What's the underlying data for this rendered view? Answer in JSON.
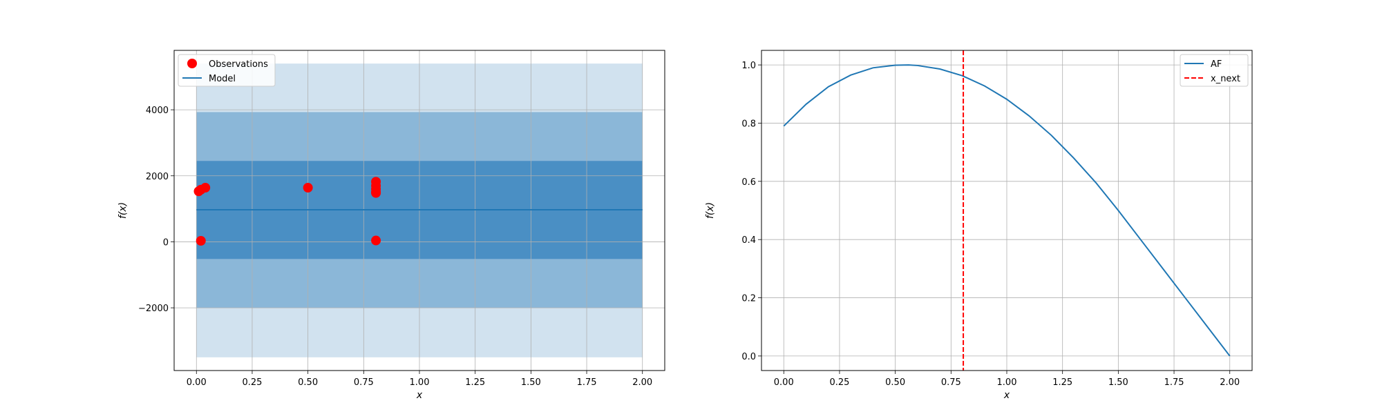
{
  "chart_data": [
    {
      "type": "line",
      "xlabel": "x",
      "ylabel": "f(x)",
      "xlim": [
        -0.1,
        2.1
      ],
      "ylim": [
        -3900,
        5800
      ],
      "xticks": [
        0.0,
        0.25,
        0.5,
        0.75,
        1.0,
        1.25,
        1.5,
        1.75,
        2.0
      ],
      "xtick_labels": [
        "0.00",
        "0.25",
        "0.50",
        "0.75",
        "1.00",
        "1.25",
        "1.50",
        "1.75",
        "2.00"
      ],
      "yticks": [
        -2000,
        0,
        2000,
        4000
      ],
      "ytick_labels": [
        "−2000",
        "0",
        "2000",
        "4000"
      ],
      "grid": true,
      "legend": "upper left",
      "uncertainty_bands": [
        {
          "lower": -3500,
          "upper": 5400,
          "color": "#d1e2ef"
        },
        {
          "lower": -2000,
          "upper": 3930,
          "color": "#8bb7d8"
        },
        {
          "lower": -520,
          "upper": 2450,
          "color": "#4a8fc4"
        }
      ],
      "model": {
        "name": "Model",
        "x": [
          0.0,
          2.0
        ],
        "y": [
          970,
          970
        ],
        "color": "#1f77b4"
      },
      "observations": {
        "name": "Observations",
        "color": "#ff0000",
        "x": [
          0.01,
          0.02,
          0.04,
          0.02,
          0.5,
          0.805,
          0.805,
          0.805,
          0.805,
          0.805,
          0.805
        ],
        "y": [
          1530,
          1580,
          1640,
          30,
          1640,
          1820,
          1700,
          1600,
          1510,
          1480,
          40
        ]
      }
    },
    {
      "type": "line",
      "xlabel": "x",
      "ylabel": "f(x)",
      "xlim": [
        -0.1,
        2.1
      ],
      "ylim": [
        -0.05,
        1.05
      ],
      "xticks": [
        0.0,
        0.25,
        0.5,
        0.75,
        1.0,
        1.25,
        1.5,
        1.75,
        2.0
      ],
      "xtick_labels": [
        "0.00",
        "0.25",
        "0.50",
        "0.75",
        "1.00",
        "1.25",
        "1.50",
        "1.75",
        "2.00"
      ],
      "yticks": [
        0.0,
        0.2,
        0.4,
        0.6,
        0.8,
        1.0
      ],
      "ytick_labels": [
        "0.0",
        "0.2",
        "0.4",
        "0.6",
        "0.8",
        "1.0"
      ],
      "grid": true,
      "legend": "upper right",
      "series": [
        {
          "name": "AF",
          "color": "#1f77b4",
          "x": [
            0.0,
            0.1,
            0.2,
            0.3,
            0.4,
            0.5,
            0.56,
            0.6,
            0.7,
            0.8,
            0.9,
            1.0,
            1.1,
            1.2,
            1.3,
            1.4,
            1.5,
            1.6,
            1.7,
            1.8,
            1.9,
            2.0
          ],
          "y": [
            0.79,
            0.865,
            0.925,
            0.965,
            0.99,
            0.999,
            1.0,
            0.998,
            0.986,
            0.963,
            0.928,
            0.882,
            0.825,
            0.758,
            0.68,
            0.595,
            0.5,
            0.4,
            0.3,
            0.2,
            0.1,
            0.0
          ]
        }
      ],
      "vline": {
        "name": "x_next",
        "x": 0.805,
        "color": "#ff0000"
      }
    }
  ]
}
